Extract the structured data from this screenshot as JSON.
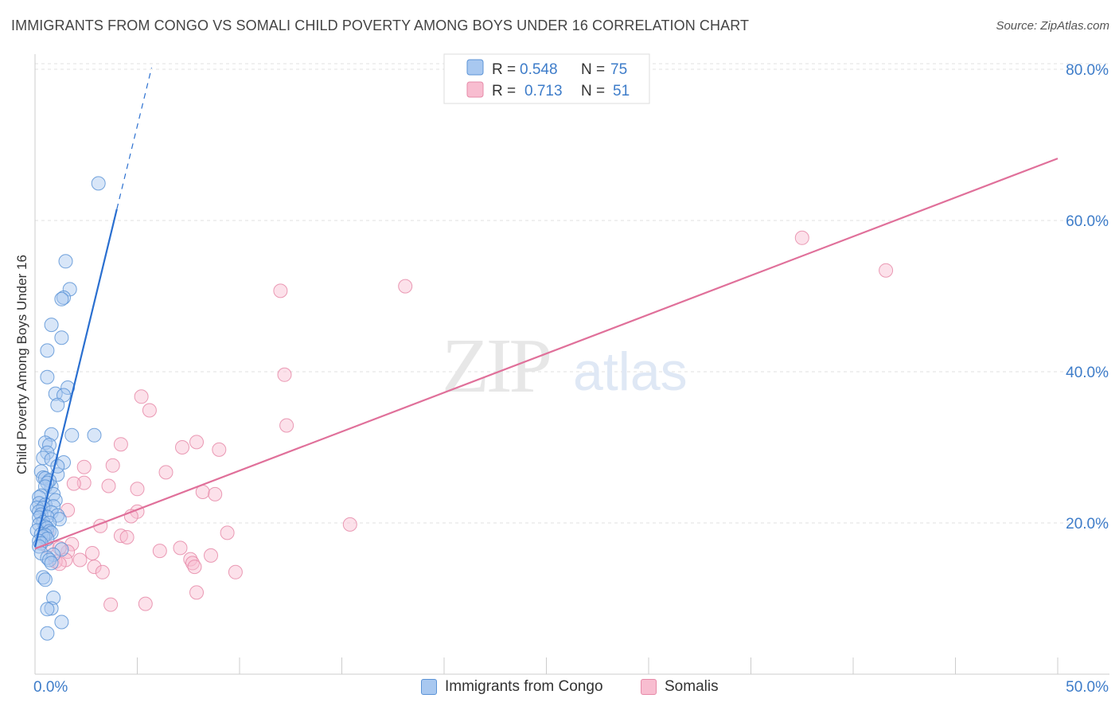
{
  "header": {
    "title": "IMMIGRANTS FROM CONGO VS SOMALI CHILD POVERTY AMONG BOYS UNDER 16 CORRELATION CHART",
    "source": "Source: ZipAtlas.com"
  },
  "watermark": {
    "zip": "ZIP",
    "atlas": "atlas"
  },
  "legend": {
    "r_label": "R =",
    "n_label": "N =",
    "rows": [
      {
        "r": "0.548",
        "n": "75"
      },
      {
        "r": "0.713",
        "n": "51"
      }
    ]
  },
  "colors": {
    "congo_fill": "#a8c8f0",
    "congo_stroke": "#5b93d6",
    "congo_line": "#2a6fd0",
    "somali_fill": "#f8bdd0",
    "somali_stroke": "#e68aa8",
    "somali_line": "#e0709a",
    "axis_label": "#3d7cc9"
  },
  "chart_data": {
    "type": "scatter",
    "title": "IMMIGRANTS FROM CONGO VS SOMALI CHILD POVERTY AMONG BOYS UNDER 16 CORRELATION CHART",
    "xlabel": "",
    "ylabel": "Child Poverty Among Boys Under 16",
    "xlim": [
      0,
      50
    ],
    "ylim": [
      0,
      82
    ],
    "x_tick_labels": [
      "0.0%",
      "50.0%"
    ],
    "y_ticks": [
      20,
      40,
      60,
      80
    ],
    "y_tick_labels": [
      "20.0%",
      "40.0%",
      "60.0%",
      "80.0%"
    ],
    "grid": true,
    "legend_position": "top-center",
    "series": [
      {
        "name": "Immigrants from Congo",
        "r": 0.548,
        "n": 75,
        "points": [
          [
            3.1,
            64.9
          ],
          [
            1.5,
            54.6
          ],
          [
            1.7,
            50.9
          ],
          [
            1.4,
            49.8
          ],
          [
            1.3,
            49.6
          ],
          [
            0.8,
            46.2
          ],
          [
            1.3,
            44.5
          ],
          [
            0.6,
            42.8
          ],
          [
            0.6,
            39.3
          ],
          [
            1.6,
            37.9
          ],
          [
            1.0,
            37.1
          ],
          [
            1.4,
            36.9
          ],
          [
            1.1,
            35.6
          ],
          [
            0.8,
            31.7
          ],
          [
            2.9,
            31.6
          ],
          [
            1.8,
            31.6
          ],
          [
            0.5,
            30.6
          ],
          [
            0.7,
            30.3
          ],
          [
            0.6,
            29.3
          ],
          [
            0.4,
            28.6
          ],
          [
            0.8,
            28.4
          ],
          [
            1.4,
            28.0
          ],
          [
            0.8,
            24.8
          ],
          [
            1.1,
            26.4
          ],
          [
            1.1,
            27.5
          ],
          [
            0.3,
            26.8
          ],
          [
            0.4,
            26.0
          ],
          [
            0.5,
            25.9
          ],
          [
            0.7,
            25.6
          ],
          [
            0.6,
            25.3
          ],
          [
            0.5,
            24.8
          ],
          [
            0.9,
            23.8
          ],
          [
            0.3,
            23.6
          ],
          [
            0.2,
            23.4
          ],
          [
            1.0,
            23.0
          ],
          [
            0.2,
            22.6
          ],
          [
            0.5,
            22.4
          ],
          [
            0.9,
            22.2
          ],
          [
            0.1,
            22.0
          ],
          [
            0.4,
            22.0
          ],
          [
            0.2,
            21.5
          ],
          [
            0.8,
            21.4
          ],
          [
            0.3,
            21.1
          ],
          [
            1.1,
            21.0
          ],
          [
            0.6,
            20.8
          ],
          [
            0.2,
            20.7
          ],
          [
            1.2,
            20.5
          ],
          [
            0.4,
            20.1
          ],
          [
            0.7,
            20.0
          ],
          [
            0.2,
            19.8
          ],
          [
            0.5,
            19.5
          ],
          [
            0.6,
            19.3
          ],
          [
            0.1,
            19.0
          ],
          [
            0.7,
            18.9
          ],
          [
            0.8,
            18.7
          ],
          [
            0.3,
            18.5
          ],
          [
            0.5,
            18.4
          ],
          [
            0.4,
            18.2
          ],
          [
            0.6,
            17.9
          ],
          [
            0.2,
            17.6
          ],
          [
            0.3,
            17.3
          ],
          [
            0.2,
            16.9
          ],
          [
            1.3,
            16.5
          ],
          [
            0.3,
            16.0
          ],
          [
            0.9,
            15.8
          ],
          [
            0.6,
            15.4
          ],
          [
            0.7,
            15.1
          ],
          [
            0.8,
            14.7
          ],
          [
            0.4,
            12.8
          ],
          [
            0.5,
            12.5
          ],
          [
            0.9,
            10.1
          ],
          [
            0.8,
            8.7
          ],
          [
            0.6,
            8.6
          ],
          [
            1.3,
            6.9
          ],
          [
            0.6,
            5.4
          ]
        ],
        "trend": {
          "x": [
            0.0,
            4.0
          ],
          "y": [
            16.8,
            61.5
          ]
        },
        "trend_extended": {
          "x": [
            4.0,
            5.7
          ],
          "y": [
            61.5,
            80.2
          ]
        }
      },
      {
        "name": "Somalis",
        "r": 0.713,
        "n": 51,
        "points": [
          [
            37.5,
            57.7
          ],
          [
            41.6,
            53.4
          ],
          [
            18.1,
            51.3
          ],
          [
            12.0,
            50.7
          ],
          [
            12.2,
            39.6
          ],
          [
            5.2,
            36.7
          ],
          [
            5.6,
            34.9
          ],
          [
            12.3,
            32.9
          ],
          [
            7.9,
            30.7
          ],
          [
            4.2,
            30.4
          ],
          [
            7.2,
            30.0
          ],
          [
            9.0,
            29.7
          ],
          [
            3.8,
            27.6
          ],
          [
            2.4,
            27.4
          ],
          [
            6.4,
            26.7
          ],
          [
            2.4,
            25.3
          ],
          [
            1.9,
            25.2
          ],
          [
            3.6,
            24.9
          ],
          [
            5.0,
            24.5
          ],
          [
            8.2,
            24.1
          ],
          [
            8.8,
            23.8
          ],
          [
            1.6,
            21.7
          ],
          [
            5.0,
            21.5
          ],
          [
            4.7,
            20.9
          ],
          [
            3.2,
            19.6
          ],
          [
            15.4,
            19.8
          ],
          [
            9.4,
            18.7
          ],
          [
            4.2,
            18.3
          ],
          [
            4.5,
            18.1
          ],
          [
            1.8,
            17.2
          ],
          [
            0.6,
            16.9
          ],
          [
            7.1,
            16.7
          ],
          [
            6.1,
            16.3
          ],
          [
            1.6,
            16.2
          ],
          [
            2.8,
            16.0
          ],
          [
            8.6,
            15.7
          ],
          [
            1.5,
            15.1
          ],
          [
            1.0,
            14.9
          ],
          [
            1.2,
            14.6
          ],
          [
            2.2,
            15.1
          ],
          [
            7.6,
            15.2
          ],
          [
            7.7,
            14.7
          ],
          [
            7.8,
            14.2
          ],
          [
            2.9,
            14.2
          ],
          [
            3.3,
            13.5
          ],
          [
            9.8,
            13.5
          ],
          [
            7.9,
            10.8
          ],
          [
            3.7,
            9.2
          ],
          [
            5.4,
            9.3
          ],
          [
            0.6,
            18.8
          ],
          [
            1.2,
            16.7
          ]
        ],
        "trend": {
          "x": [
            0.0,
            50.0
          ],
          "y": [
            16.6,
            68.2
          ]
        }
      }
    ]
  },
  "bottom_legend": {
    "items": [
      {
        "label": "Immigrants from Congo"
      },
      {
        "label": "Somalis"
      }
    ]
  }
}
